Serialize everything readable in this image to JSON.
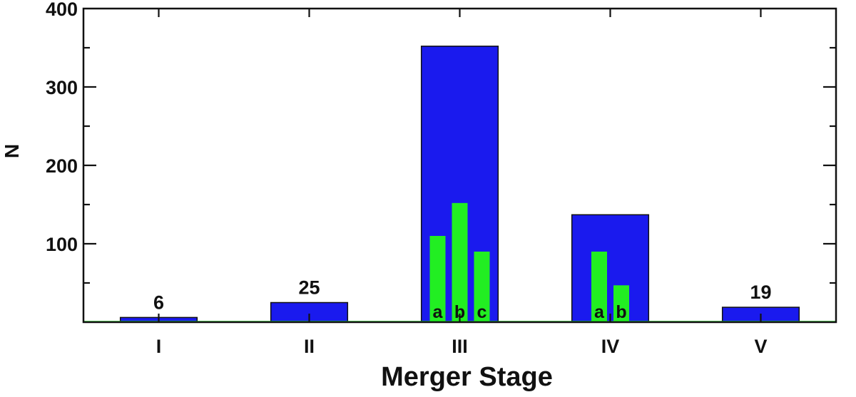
{
  "chart_data": {
    "type": "bar",
    "xlabel": "Merger Stage",
    "ylabel": "N",
    "ylim": [
      0,
      400
    ],
    "yticks": [
      100,
      200,
      300,
      400
    ],
    "categories": [
      "I",
      "II",
      "III",
      "IV",
      "V"
    ],
    "values": [
      6,
      25,
      352,
      137,
      19
    ],
    "value_labels": [
      "6",
      "25",
      "",
      "",
      "19"
    ],
    "substages": [
      {
        "category": "III",
        "items": [
          {
            "label": "a",
            "value": 110
          },
          {
            "label": "b",
            "value": 152
          },
          {
            "label": "c",
            "value": 90
          }
        ]
      },
      {
        "category": "IV",
        "items": [
          {
            "label": "a",
            "value": 90
          },
          {
            "label": "b",
            "value": 47
          }
        ]
      }
    ],
    "colors": {
      "main": "#1a1aee",
      "sub": "#22ee22",
      "axis": "#111111"
    },
    "grid": false
  }
}
